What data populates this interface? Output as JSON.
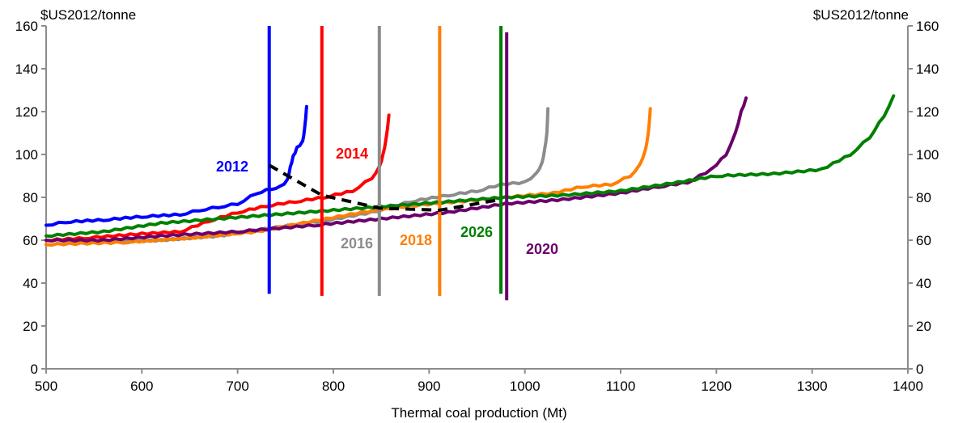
{
  "chart_data": {
    "type": "line",
    "title": "",
    "xlabel": "Thermal coal production (Mt)",
    "ylabel_left": "$US2012/tonne",
    "ylabel_right": "$US2012/tonne",
    "xlim": [
      500,
      1400
    ],
    "ylim": [
      0,
      160
    ],
    "x_ticks": [
      "500",
      "600",
      "700",
      "800",
      "900",
      "1000",
      "1100",
      "1200",
      "1300",
      "1400"
    ],
    "y_ticks": [
      "0",
      "20",
      "40",
      "60",
      "80",
      "100",
      "120",
      "140",
      "160"
    ],
    "grid": false,
    "legend": "none (direct labels)",
    "series": [
      {
        "name": "2012",
        "color": "#0000ff",
        "label_at": [
          520,
          0
        ],
        "points": [
          [
            500,
            67
          ],
          [
            520,
            68.5
          ],
          [
            560,
            69.5
          ],
          [
            600,
            71
          ],
          [
            640,
            72
          ],
          [
            660,
            74
          ],
          [
            680,
            75.5
          ],
          [
            700,
            77
          ],
          [
            720,
            82
          ],
          [
            735,
            84
          ],
          [
            745,
            85
          ],
          [
            752,
            88
          ],
          [
            755,
            94
          ],
          [
            758,
            99
          ],
          [
            762,
            103
          ],
          [
            768,
            106
          ],
          [
            770,
            112
          ],
          [
            772,
            122
          ]
        ],
        "demand_line": {
          "x": 733,
          "y_from": 35,
          "y_to": 160
        }
      },
      {
        "name": "2014",
        "color": "#ff0000",
        "label_at": [
          0,
          0
        ],
        "points": [
          [
            500,
            60
          ],
          [
            540,
            61
          ],
          [
            600,
            63
          ],
          [
            640,
            64
          ],
          [
            670,
            69
          ],
          [
            700,
            73
          ],
          [
            730,
            76
          ],
          [
            760,
            78
          ],
          [
            790,
            80
          ],
          [
            820,
            83
          ],
          [
            840,
            89
          ],
          [
            848,
            94
          ],
          [
            852,
            100
          ],
          [
            855,
            107
          ],
          [
            858,
            118
          ]
        ],
        "demand_line": {
          "x": 788,
          "y_from": 34,
          "y_to": 160
        }
      },
      {
        "name": "2016",
        "color": "#8c8c8c",
        "label_at": [
          0,
          0
        ],
        "points": [
          [
            500,
            58
          ],
          [
            560,
            59
          ],
          [
            620,
            60
          ],
          [
            680,
            62
          ],
          [
            740,
            66
          ],
          [
            790,
            69
          ],
          [
            840,
            73
          ],
          [
            880,
            78
          ],
          [
            920,
            81
          ],
          [
            950,
            83
          ],
          [
            975,
            86
          ],
          [
            1000,
            87
          ],
          [
            1012,
            91
          ],
          [
            1018,
            96
          ],
          [
            1021,
            103
          ],
          [
            1023,
            110
          ],
          [
            1024,
            121
          ]
        ],
        "demand_line": {
          "x": 848,
          "y_from": 34,
          "y_to": 160
        }
      },
      {
        "name": "2018",
        "color": "#ff7f00",
        "label_at": [
          0,
          0
        ],
        "points": [
          [
            500,
            58
          ],
          [
            580,
            59
          ],
          [
            650,
            61
          ],
          [
            720,
            64
          ],
          [
            780,
            69
          ],
          [
            830,
            73
          ],
          [
            880,
            76
          ],
          [
            930,
            78
          ],
          [
            980,
            80
          ],
          [
            1030,
            82
          ],
          [
            1060,
            85
          ],
          [
            1090,
            86
          ],
          [
            1110,
            90
          ],
          [
            1120,
            95
          ],
          [
            1126,
            102
          ],
          [
            1129,
            110
          ],
          [
            1131,
            121
          ]
        ],
        "demand_line": {
          "x": 911,
          "y_from": 34,
          "y_to": 160
        }
      },
      {
        "name": "2020",
        "color": "#6b006b",
        "label_at": [
          0,
          0
        ],
        "points": [
          [
            500,
            60
          ],
          [
            560,
            60
          ],
          [
            620,
            62
          ],
          [
            700,
            64
          ],
          [
            780,
            67
          ],
          [
            850,
            70
          ],
          [
            920,
            73
          ],
          [
            980,
            77
          ],
          [
            1040,
            79
          ],
          [
            1100,
            82
          ],
          [
            1140,
            85
          ],
          [
            1170,
            87
          ],
          [
            1195,
            93
          ],
          [
            1210,
            100
          ],
          [
            1220,
            110
          ],
          [
            1226,
            120
          ],
          [
            1231,
            126
          ]
        ],
        "demand_line": {
          "x": 981,
          "y_from": 32,
          "y_to": 157
        }
      },
      {
        "name": "2026",
        "color": "#008000",
        "label_at": [
          0,
          0
        ],
        "points": [
          [
            500,
            62
          ],
          [
            560,
            64
          ],
          [
            620,
            68
          ],
          [
            680,
            70
          ],
          [
            740,
            72
          ],
          [
            800,
            74
          ],
          [
            860,
            76
          ],
          [
            920,
            78
          ],
          [
            980,
            80
          ],
          [
            1040,
            81
          ],
          [
            1100,
            83
          ],
          [
            1160,
            87
          ],
          [
            1200,
            90
          ],
          [
            1260,
            91
          ],
          [
            1310,
            93
          ],
          [
            1340,
            100
          ],
          [
            1360,
            108
          ],
          [
            1375,
            118
          ],
          [
            1385,
            127
          ]
        ],
        "demand_line": {
          "x": 975,
          "y_from": 35,
          "y_to": 160
        }
      }
    ],
    "equilibrium_path": {
      "style": "dashed",
      "color": "#000000",
      "points": [
        [
          733,
          95
        ],
        [
          788,
          81
        ],
        [
          848,
          75
        ],
        [
          911,
          74
        ],
        [
          975,
          79
        ]
      ]
    },
    "annotations": [
      "2012",
      "2014",
      "2016",
      "2018",
      "2026",
      "2020"
    ]
  }
}
